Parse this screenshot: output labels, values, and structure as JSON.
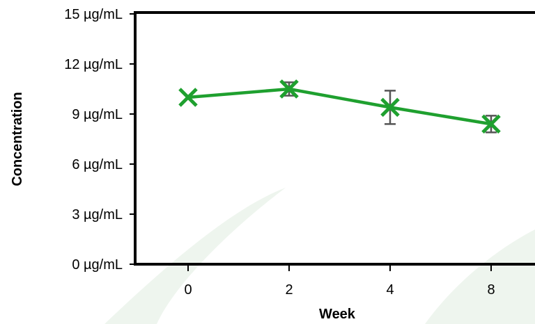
{
  "chart_data": {
    "type": "line",
    "categories": [
      "0",
      "2",
      "4",
      "8"
    ],
    "xlabel": "Week",
    "ylabel": "Concentration",
    "ylim": [
      0,
      15
    ],
    "yticks": [
      "0 µg/mL",
      "3 µg/mL",
      "6 µg/mL",
      "9 µg/mL",
      "12 µg/mL",
      "15 µg/mL"
    ],
    "ytick_values": [
      0,
      3,
      6,
      9,
      12,
      15
    ],
    "grid": false,
    "series": [
      {
        "color": "#1fa02f",
        "marker": "x",
        "values": [
          10.0,
          10.5,
          9.4,
          8.4
        ],
        "error": [
          0.0,
          0.4,
          1.0,
          0.5
        ]
      }
    ],
    "errorbar_color": "#555555",
    "watermark_color": "#eef5ee"
  }
}
